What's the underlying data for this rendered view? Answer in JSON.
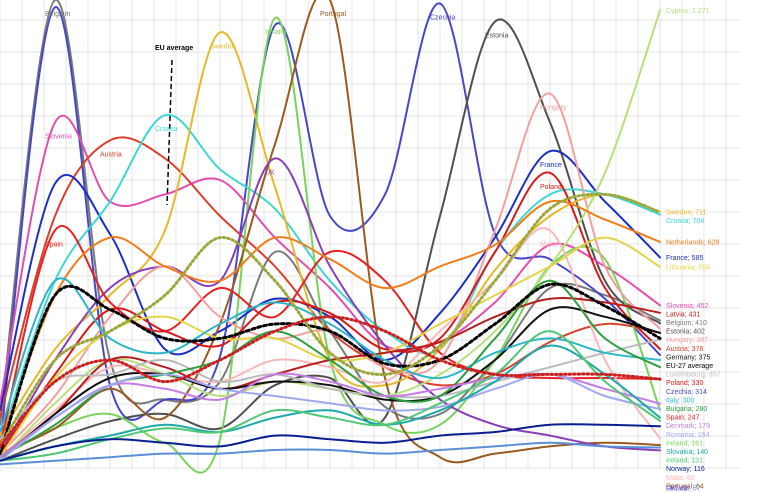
{
  "chart_data": {
    "type": "line",
    "title": "",
    "xlabel": "",
    "ylabel": "",
    "ylim": [
      0,
      1300
    ],
    "x": [
      0,
      6,
      12,
      18,
      24,
      30,
      36,
      42,
      48,
      54,
      60,
      66,
      72
    ],
    "grid": true,
    "eu_average_label": "EU average",
    "series": [
      {
        "name": "Belgium",
        "color": "#7a7a7a",
        "width": 2,
        "values": [
          120,
          1300,
          300,
          190,
          240,
          600,
          380,
          170,
          150,
          300,
          500,
          480,
          410
        ],
        "label": "Belgium",
        "end_label": "Belgium; 410"
      },
      {
        "name": "Czechia",
        "color": "#4747c9",
        "width": 2,
        "values": [
          60,
          1280,
          230,
          190,
          310,
          1230,
          700,
          760,
          1290,
          650,
          580,
          470,
          314
        ],
        "label": "Czechia",
        "end_label": "Czechia; 314"
      },
      {
        "name": "Estonia",
        "color": "#505050",
        "width": 2,
        "values": [
          20,
          80,
          130,
          150,
          110,
          230,
          250,
          140,
          700,
          1240,
          960,
          520,
          402
        ],
        "label": "Estonia",
        "end_label": "Estonia; 402"
      },
      {
        "name": "Slovenia",
        "color": "#e14fae",
        "width": 2,
        "values": [
          180,
          960,
          740,
          760,
          800,
          640,
          500,
          340,
          350,
          460,
          620,
          560,
          452
        ],
        "label": "Slovenia",
        "end_label": "Slovenia; 452"
      },
      {
        "name": "Austria",
        "color": "#d9412e",
        "width": 2,
        "values": [
          140,
          700,
          910,
          860,
          700,
          560,
          380,
          280,
          230,
          260,
          350,
          400,
          376
        ],
        "label": "Austria",
        "end_label": "Austria; 376"
      },
      {
        "name": "France",
        "color": "#1b2fc4",
        "width": 2,
        "values": [
          160,
          790,
          650,
          330,
          380,
          470,
          420,
          300,
          430,
          640,
          880,
          740,
          585
        ],
        "label": "France",
        "end_label": "France; 585"
      },
      {
        "name": "Croatia",
        "color": "#3ed6d6",
        "width": 2,
        "values": [
          70,
          520,
          740,
          980,
          830,
          720,
          520,
          380,
          330,
          600,
          760,
          760,
          704
        ],
        "label": "Croatia",
        "end_label": "Croatia; 704"
      },
      {
        "name": "Sweden",
        "color": "#e6b92a",
        "width": 2,
        "values": [
          90,
          330,
          480,
          660,
          1210,
          780,
          300,
          230,
          330,
          550,
          700,
          760,
          711
        ],
        "label": "Sweden",
        "end_label": "Sweden; 711"
      },
      {
        "name": "Ireland",
        "color": "#79d35a",
        "width": 2,
        "values": [
          30,
          110,
          150,
          70,
          80,
          1250,
          300,
          120,
          120,
          300,
          560,
          580,
          161
        ],
        "label": "Ireland",
        "end_label": "Ireland; 161"
      },
      {
        "name": "Portugal",
        "color": "#9a5a20",
        "width": 2,
        "values": [
          40,
          110,
          220,
          140,
          400,
          900,
          1300,
          250,
          30,
          40,
          60,
          70,
          64
        ],
        "label": "Portugal",
        "end_label": "Portugal; 64"
      },
      {
        "name": "UK",
        "color": "#8a3fb8",
        "width": 2,
        "values": [
          40,
          300,
          500,
          560,
          520,
          860,
          560,
          340,
          190,
          120,
          90,
          60,
          49
        ],
        "label": "UK",
        "end_label": "UK; 49"
      },
      {
        "name": "Spain",
        "color": "#e62222",
        "width": 2,
        "values": [
          60,
          660,
          460,
          380,
          500,
          420,
          600,
          520,
          320,
          260,
          250,
          250,
          247
        ],
        "label": "Spain",
        "end_label": "Spain; 247"
      },
      {
        "name": "Hungary",
        "color": "#f2a0a0",
        "width": 2,
        "values": [
          40,
          200,
          420,
          560,
          420,
          360,
          380,
          280,
          300,
          660,
          1040,
          560,
          387
        ],
        "label": "Hungary",
        "end_label": "Hungary; 387"
      },
      {
        "name": "Poland",
        "color": "#d61a1a",
        "width": 2,
        "values": [
          40,
          260,
          440,
          380,
          340,
          460,
          430,
          330,
          360,
          600,
          820,
          500,
          330
        ],
        "label": "Poland",
        "end_label": "Poland; 330"
      },
      {
        "name": "Malta",
        "color": "#f7b8b8",
        "width": 2,
        "values": [
          30,
          160,
          280,
          260,
          240,
          300,
          280,
          240,
          380,
          520,
          660,
          300,
          82
        ],
        "label": "Malta",
        "end_label": "Malta; 82"
      },
      {
        "name": "Cyprus",
        "color": "#b8e07a",
        "width": 2,
        "values": [
          20,
          180,
          300,
          260,
          200,
          240,
          220,
          200,
          260,
          380,
          560,
          820,
          1271
        ],
        "label": "",
        "end_label": "Cyprus; 1 271"
      },
      {
        "name": "Netherlands",
        "color": "#f07d1a",
        "width": 2,
        "values": [
          60,
          480,
          640,
          560,
          520,
          640,
          580,
          500,
          560,
          620,
          740,
          690,
          628
        ],
        "label": "",
        "end_label": "Netherlands; 628"
      },
      {
        "name": "Lithuania",
        "color": "#e3d44a",
        "width": 2,
        "values": [
          30,
          250,
          380,
          420,
          360,
          360,
          300,
          320,
          400,
          480,
          560,
          640,
          559
        ],
        "label": "",
        "end_label": "Lithuania; 559"
      },
      {
        "name": "Latvia",
        "color": "#b81e1e",
        "width": 2,
        "values": [
          30,
          150,
          300,
          280,
          220,
          260,
          300,
          320,
          350,
          420,
          470,
          460,
          431
        ],
        "label": "",
        "end_label": "Latvia; 431"
      },
      {
        "name": "Germany",
        "color": "#111111",
        "width": 2,
        "values": [
          20,
          150,
          250,
          260,
          220,
          240,
          230,
          190,
          200,
          300,
          440,
          420,
          375
        ],
        "label": "",
        "end_label": "Germany; 375"
      },
      {
        "name": "Luxembourg",
        "color": "#bbbbbb",
        "width": 2,
        "values": [
          80,
          240,
          260,
          300,
          240,
          260,
          220,
          200,
          200,
          240,
          280,
          320,
          357
        ],
        "label": "",
        "end_label": "Luxembourg; 357"
      },
      {
        "name": "Italy",
        "color": "#2bb6c9",
        "width": 2,
        "values": [
          100,
          520,
          360,
          320,
          400,
          460,
          400,
          300,
          250,
          320,
          360,
          320,
          300
        ],
        "label": "",
        "end_label": "Italy; 300"
      },
      {
        "name": "Bulgaria",
        "color": "#2e9e3e",
        "width": 2,
        "values": [
          30,
          120,
          230,
          260,
          300,
          380,
          300,
          200,
          200,
          360,
          520,
          360,
          280
        ],
        "label": "",
        "end_label": "Bulgaria; 280"
      },
      {
        "name": "Denmark",
        "color": "#c47de6",
        "width": 2,
        "values": [
          30,
          140,
          230,
          220,
          190,
          260,
          240,
          200,
          220,
          250,
          260,
          220,
          179
        ],
        "label": "",
        "end_label": "Denmark; 179"
      },
      {
        "name": "Romania",
        "color": "#9fa9f0",
        "width": 2,
        "values": [
          20,
          140,
          230,
          260,
          220,
          200,
          180,
          160,
          170,
          220,
          260,
          200,
          164
        ],
        "label": "",
        "end_label": "Romania; 164"
      },
      {
        "name": "Slovakia",
        "color": "#1fa9a9",
        "width": 2,
        "values": [
          20,
          60,
          90,
          120,
          100,
          140,
          160,
          120,
          160,
          240,
          340,
          260,
          140
        ],
        "label": "",
        "end_label": "Slovakia; 140"
      },
      {
        "name": "Ireland ",
        "color": "#50c878",
        "width": 2,
        "values": [
          20,
          40,
          80,
          110,
          100,
          160,
          140,
          120,
          180,
          260,
          380,
          240,
          131
        ],
        "label": "",
        "end_label": "Ireland; 131"
      },
      {
        "name": "Norway",
        "color": "#0a1f8f",
        "width": 2,
        "values": [
          20,
          60,
          80,
          70,
          60,
          90,
          80,
          70,
          90,
          100,
          120,
          120,
          116
        ],
        "label": "",
        "end_label": "Norway; 116"
      },
      {
        "name": "Finland",
        "color": "#5b8fd6",
        "width": 2,
        "values": [
          10,
          20,
          30,
          40,
          40,
          50,
          50,
          40,
          50,
          60,
          70,
          60,
          57
        ],
        "label": "",
        "end_label": "Finland; 57"
      },
      {
        "name": "EU-27 average",
        "color": "#000000",
        "width": 3,
        "dashed": true,
        "values": [
          40,
          480,
          440,
          360,
          360,
          400,
          380,
          290,
          300,
          400,
          510,
          450,
          360
        ],
        "label": "",
        "end_label": "EU-27 average"
      },
      {
        "name": "Sweden-dotted",
        "color": "#9aa83a",
        "width": 3,
        "dotted": true,
        "values": [
          60,
          300,
          380,
          480,
          640,
          520,
          320,
          260,
          340,
          520,
          720,
          760,
          711
        ],
        "label": "",
        "end_label": ""
      },
      {
        "name": "Spain-dotted",
        "color": "#cc2020",
        "width": 3,
        "dotted": true,
        "values": [
          60,
          240,
          300,
          240,
          300,
          380,
          420,
          380,
          300,
          260,
          260,
          260,
          247
        ],
        "label": "",
        "end_label": ""
      }
    ]
  }
}
